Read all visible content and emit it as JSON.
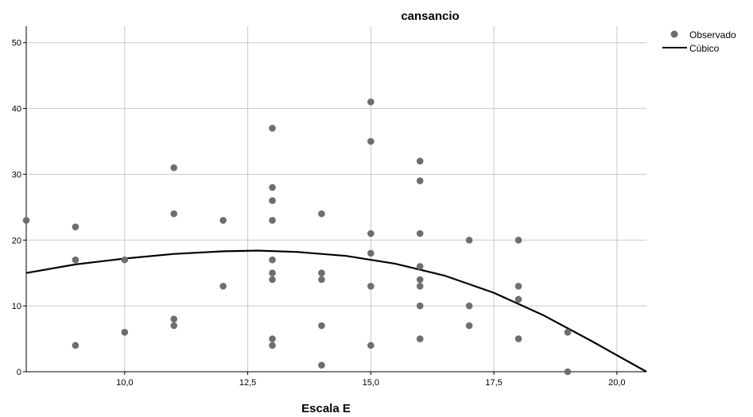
{
  "chart_data": {
    "type": "scatter",
    "title": "cansancio",
    "xlabel": "Escala E",
    "ylabel": "",
    "xlim": [
      8,
      20.6
    ],
    "ylim": [
      0,
      52.5
    ],
    "x_ticks": [
      10,
      12.5,
      15,
      17.5,
      20
    ],
    "x_tick_labels": [
      "10,0",
      "12,5",
      "15,0",
      "17,5",
      "20,0"
    ],
    "y_ticks": [
      0,
      10,
      20,
      30,
      40,
      50
    ],
    "y_tick_labels": [
      "0",
      "10",
      "20",
      "30",
      "40",
      "50"
    ],
    "grid": true,
    "legend_position": "top-right outside",
    "series": [
      {
        "name": "Observado",
        "kind": "points",
        "color": "#6e6e6e",
        "points": [
          [
            8,
            23
          ],
          [
            9,
            22
          ],
          [
            9,
            17
          ],
          [
            9,
            4
          ],
          [
            10,
            17
          ],
          [
            10,
            6
          ],
          [
            11,
            31
          ],
          [
            11,
            24
          ],
          [
            11,
            8
          ],
          [
            11,
            7
          ],
          [
            12,
            23
          ],
          [
            12,
            13
          ],
          [
            13,
            37
          ],
          [
            13,
            28
          ],
          [
            13,
            26
          ],
          [
            13,
            23
          ],
          [
            13,
            17
          ],
          [
            13,
            15
          ],
          [
            13,
            14
          ],
          [
            13,
            5
          ],
          [
            13,
            4
          ],
          [
            14,
            24
          ],
          [
            14,
            15
          ],
          [
            14,
            14
          ],
          [
            14,
            7
          ],
          [
            14,
            1
          ],
          [
            15,
            41
          ],
          [
            15,
            35
          ],
          [
            15,
            21
          ],
          [
            15,
            18
          ],
          [
            15,
            13
          ],
          [
            15,
            4
          ],
          [
            16,
            32
          ],
          [
            16,
            29
          ],
          [
            16,
            21
          ],
          [
            16,
            16
          ],
          [
            16,
            14
          ],
          [
            16,
            13
          ],
          [
            16,
            10
          ],
          [
            16,
            5
          ],
          [
            17,
            20
          ],
          [
            17,
            10
          ],
          [
            17,
            7
          ],
          [
            18,
            20
          ],
          [
            18,
            13
          ],
          [
            18,
            11
          ],
          [
            18,
            5
          ],
          [
            19,
            6
          ],
          [
            19,
            0
          ]
        ]
      },
      {
        "name": "Cúbico",
        "kind": "line",
        "color": "#000000",
        "points": [
          [
            8,
            15
          ],
          [
            9,
            16.3
          ],
          [
            10,
            17.2
          ],
          [
            11,
            17.9
          ],
          [
            12,
            18.3
          ],
          [
            12.7,
            18.4
          ],
          [
            13.5,
            18.2
          ],
          [
            14.5,
            17.6
          ],
          [
            15.5,
            16.4
          ],
          [
            16.5,
            14.6
          ],
          [
            17.5,
            12.0
          ],
          [
            18.5,
            8.6
          ],
          [
            19.5,
            4.6
          ],
          [
            20.6,
            0
          ]
        ]
      }
    ]
  }
}
